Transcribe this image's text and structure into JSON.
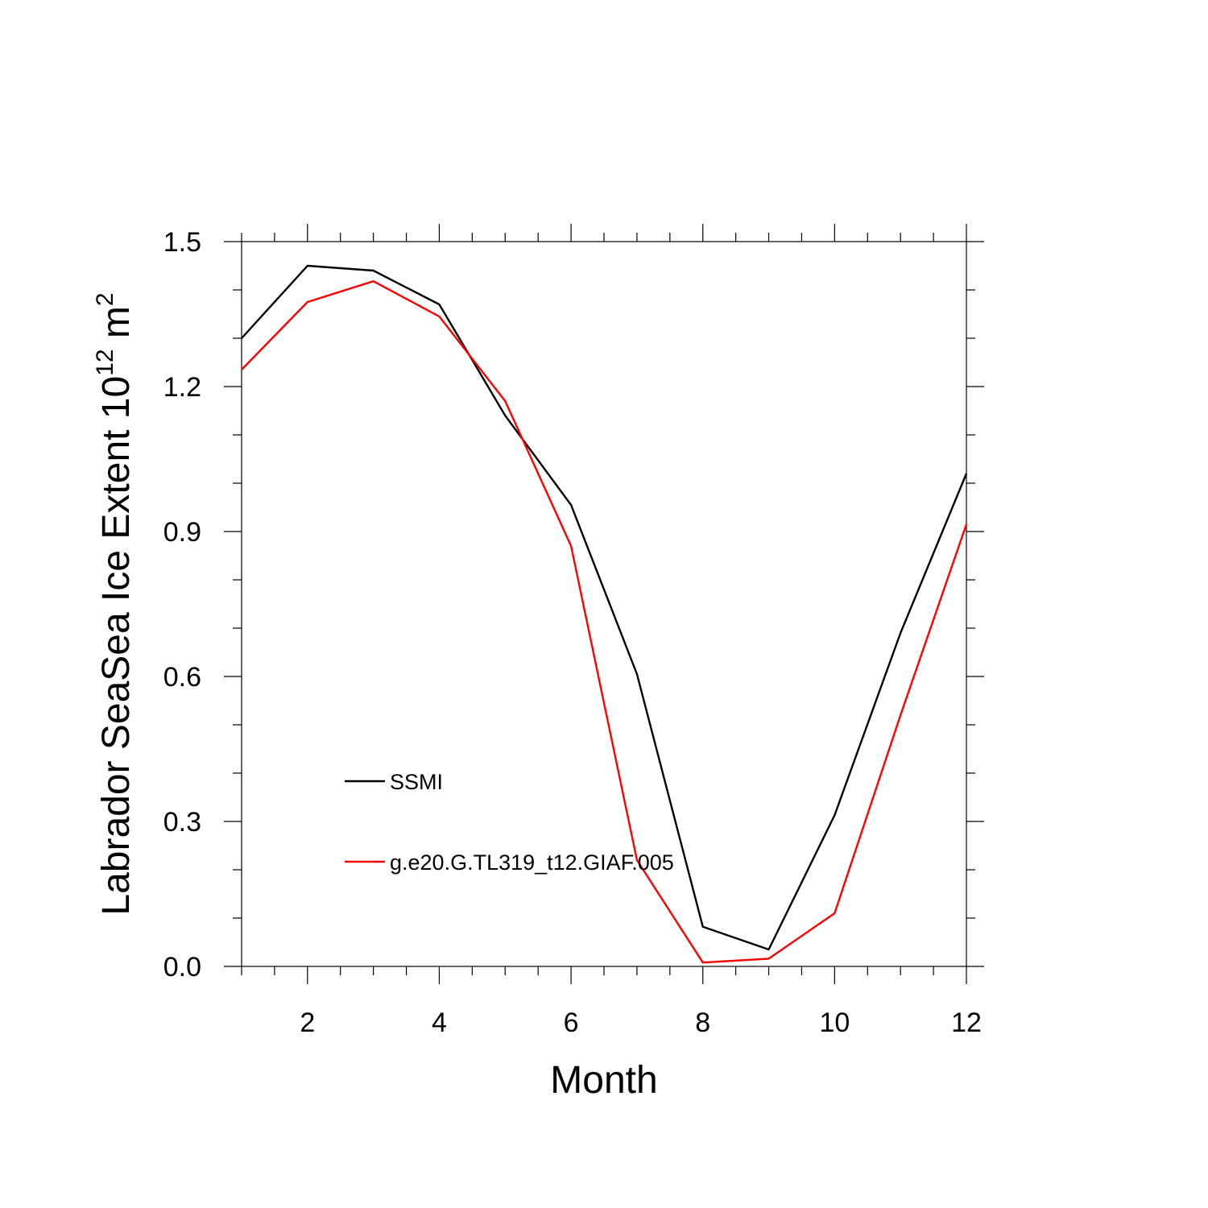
{
  "chart_data": {
    "type": "line",
    "xlabel": "Month",
    "ylabel": {
      "prefix": "Labrador SeaSea Ice Extent 10",
      "superscript_1": "12",
      "unit": " m",
      "superscript_2": "2"
    },
    "xlim": [
      1,
      12
    ],
    "ylim": [
      0,
      1.5
    ],
    "x_ticks": [
      2,
      4,
      6,
      8,
      10,
      12
    ],
    "x_tick_labels": [
      "2",
      "4",
      "6",
      "8",
      "10",
      "12"
    ],
    "y_ticks": [
      0,
      0.3,
      0.6,
      0.9,
      1.2,
      1.5
    ],
    "y_tick_labels": [
      "0.0",
      "0.3",
      "0.6",
      "0.9",
      "1.2",
      "1.5"
    ],
    "grid": false,
    "legend_position": "lower-left inside plot",
    "x": [
      1,
      2,
      3,
      4,
      5,
      6,
      7,
      8,
      9,
      10,
      11,
      12
    ],
    "series": [
      {
        "name": "SSMI",
        "color": "#000000",
        "values": [
          1.3,
          1.45,
          1.44,
          1.37,
          1.14,
          0.955,
          0.605,
          0.082,
          0.035,
          0.313,
          0.69,
          1.02
        ]
      },
      {
        "name": "g.e20.G.TL319_t12.GIAF.005",
        "color": "#ff0000",
        "values": [
          1.235,
          1.375,
          1.418,
          1.345,
          1.17,
          0.87,
          0.22,
          0.008,
          0.016,
          0.11,
          0.52,
          0.915
        ]
      }
    ]
  }
}
